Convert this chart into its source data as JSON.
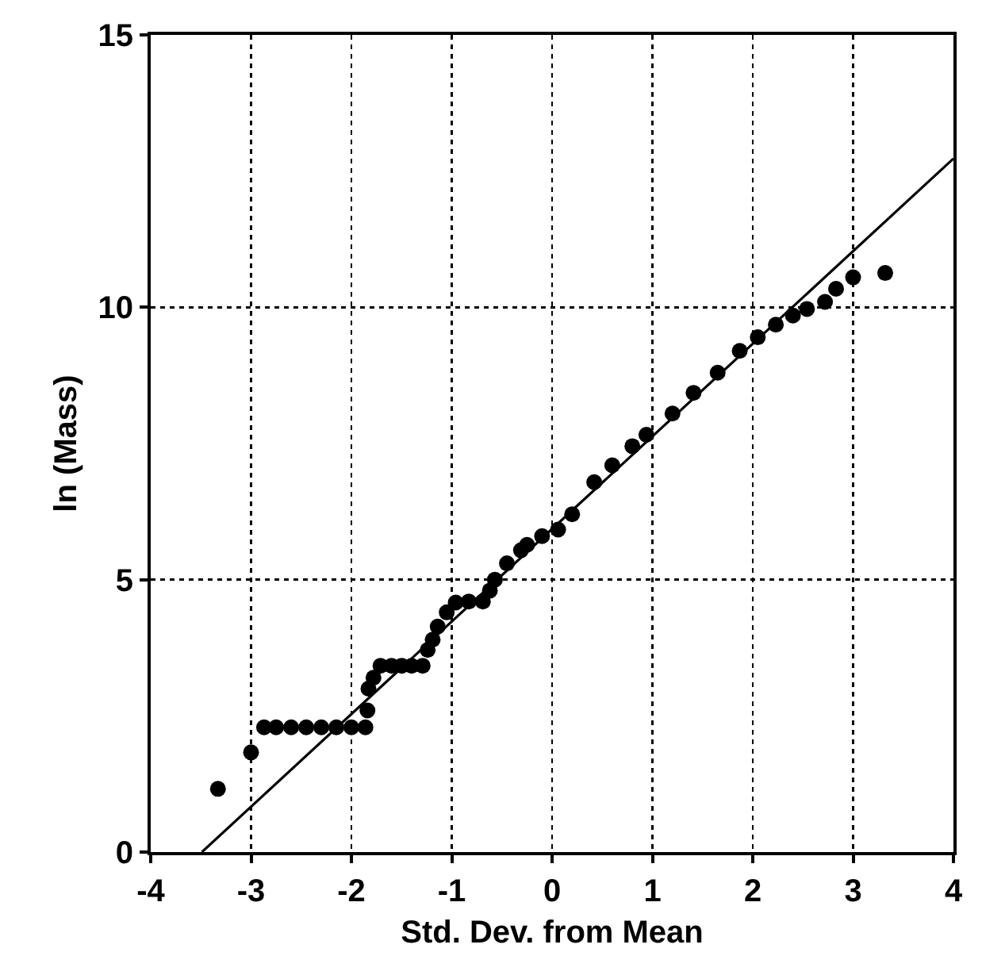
{
  "chart_data": {
    "type": "scatter",
    "xlabel": "Std. Dev. from Mean",
    "ylabel": "ln (Mass)",
    "xlim": [
      -4,
      4
    ],
    "xticks": [
      -4,
      -3,
      -2,
      -1,
      0,
      1,
      2,
      3,
      4
    ],
    "ylim": [
      0,
      15
    ],
    "yticks": [
      0,
      5,
      10,
      15
    ],
    "grid": true,
    "series": [
      {
        "type": "scatter",
        "color": "#000000",
        "marker": "circle",
        "x": [
          -3.33,
          -3.0,
          -2.87,
          -2.75,
          -2.6,
          -2.45,
          -2.3,
          -2.15,
          -2.0,
          -1.86,
          -1.84,
          -1.83,
          -1.78,
          -1.71,
          -1.6,
          -1.5,
          -1.4,
          -1.29,
          -1.24,
          -1.19,
          -1.14,
          -1.05,
          -0.96,
          -0.83,
          -0.69,
          -0.62,
          -0.57,
          -0.45,
          -0.31,
          -0.25,
          -0.1,
          0.06,
          0.2,
          0.42,
          0.6,
          0.8,
          0.94,
          1.2,
          1.41,
          1.65,
          1.87,
          2.05,
          2.23,
          2.4,
          2.54,
          2.72,
          2.83,
          3.0,
          3.32
        ],
        "values": [
          1.16,
          1.83,
          2.29,
          2.29,
          2.29,
          2.29,
          2.29,
          2.29,
          2.29,
          2.29,
          2.6,
          3.0,
          3.2,
          3.42,
          3.42,
          3.42,
          3.42,
          3.42,
          3.71,
          3.9,
          4.14,
          4.4,
          4.58,
          4.6,
          4.6,
          4.8,
          5.0,
          5.3,
          5.54,
          5.64,
          5.8,
          5.92,
          6.2,
          6.79,
          7.1,
          7.45,
          7.66,
          8.05,
          8.43,
          8.8,
          9.2,
          9.45,
          9.68,
          9.85,
          9.97,
          10.1,
          10.34,
          10.55,
          10.63
        ]
      },
      {
        "type": "line",
        "color": "#000000",
        "line_style": "solid",
        "x": [
          -3.49,
          4
        ],
        "values": [
          0,
          12.73
        ]
      }
    ]
  }
}
